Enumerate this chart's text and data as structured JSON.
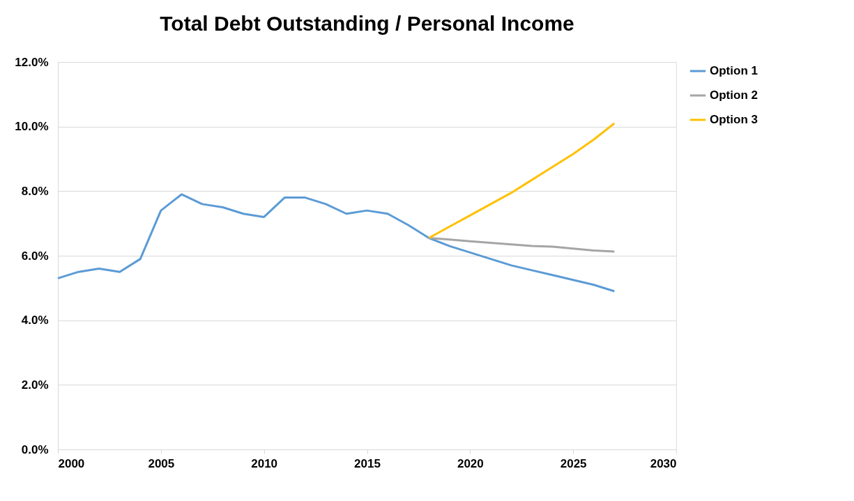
{
  "chart_data": {
    "type": "line",
    "title": "Total Debt Outstanding / Personal Income",
    "x": [
      2000,
      2001,
      2002,
      2003,
      2004,
      2005,
      2006,
      2007,
      2008,
      2009,
      2010,
      2011,
      2012,
      2013,
      2014,
      2015,
      2016,
      2017,
      2018,
      2019,
      2020,
      2021,
      2022,
      2023,
      2024,
      2025,
      2026,
      2027
    ],
    "series": [
      {
        "name": "Option 1",
        "color": "#5b9bd5",
        "values": [
          5.3,
          5.5,
          5.6,
          5.5,
          5.9,
          7.4,
          7.9,
          7.6,
          7.5,
          7.3,
          7.2,
          7.8,
          7.8,
          7.6,
          7.3,
          7.4,
          7.3,
          6.95,
          6.55,
          6.3,
          6.1,
          5.9,
          5.7,
          5.55,
          5.4,
          5.25,
          5.1,
          4.9
        ]
      },
      {
        "name": "Option 2",
        "color": "#a5a5a5",
        "values": [
          null,
          null,
          null,
          null,
          null,
          null,
          null,
          null,
          null,
          null,
          null,
          null,
          null,
          null,
          null,
          null,
          null,
          null,
          6.55,
          6.5,
          6.45,
          6.4,
          6.35,
          6.3,
          6.28,
          6.22,
          6.16,
          6.13
        ]
      },
      {
        "name": "Option 3",
        "color": "#ffc000",
        "values": [
          null,
          null,
          null,
          null,
          null,
          null,
          null,
          null,
          null,
          null,
          null,
          null,
          null,
          null,
          null,
          null,
          null,
          null,
          6.55,
          6.9,
          7.25,
          7.6,
          7.95,
          8.35,
          8.75,
          9.15,
          9.6,
          10.1
        ]
      }
    ],
    "xlim": [
      2000,
      2030
    ],
    "xticks": [
      2000,
      2005,
      2010,
      2015,
      2020,
      2025,
      2030
    ],
    "ylim": [
      0,
      12
    ],
    "yticks": [
      {
        "value": 0,
        "label": "0.0%"
      },
      {
        "value": 2,
        "label": "2.0%"
      },
      {
        "value": 4,
        "label": "4.0%"
      },
      {
        "value": 6,
        "label": "6.0%"
      },
      {
        "value": 8,
        "label": "8.0%"
      },
      {
        "value": 10,
        "label": "10.0%"
      },
      {
        "value": 12,
        "label": "12.0%"
      }
    ],
    "grid": "y",
    "legend": "right",
    "marker": "none",
    "line_style": "solid"
  }
}
